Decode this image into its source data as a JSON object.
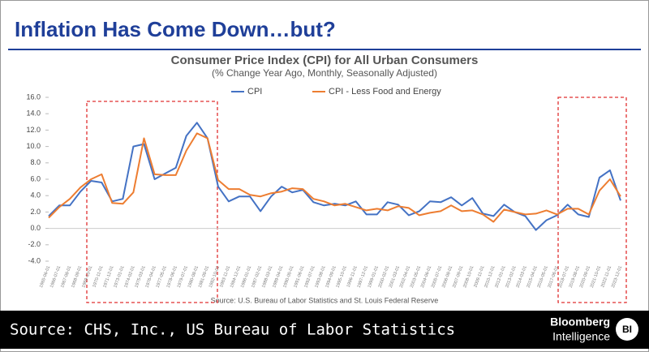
{
  "header": {
    "title": "Inflation Has Come Down…but?"
  },
  "chart_data": {
    "type": "line",
    "title": "Consumer Price Index (CPI) for All Urban Consumers",
    "subtitle": "(% Change Year Ago, Monthly, Seasonally Adjusted)",
    "note": "Source: U.S. Bureau of Labor Statistics and St. Louis Federal Reserve",
    "x": [
      "1965-06-01",
      "1966-07-01",
      "1967-08-01",
      "1968-09-01",
      "1969-10-01",
      "1970-11-01",
      "1971-12-01",
      "1973-01-01",
      "1974-02-01",
      "1975-03-01",
      "1976-04-01",
      "1977-05-01",
      "1978-06-01",
      "1979-07-01",
      "1980-08-01",
      "1981-09-01",
      "1982-10-01",
      "1983-11-01",
      "1984-12-01",
      "1986-01-01",
      "1987-02-01",
      "1988-03-01",
      "1989-04-01",
      "1990-05-01",
      "1991-06-01",
      "1992-07-01",
      "1993-08-01",
      "1994-09-01",
      "1995-10-01",
      "1996-11-01",
      "1997-12-01",
      "1999-01-01",
      "2000-02-01",
      "2001-03-01",
      "2002-04-01",
      "2003-05-01",
      "2004-06-01",
      "2005-07-01",
      "2006-08-01",
      "2007-09-01",
      "2008-10-01",
      "2009-11-01",
      "2010-12-01",
      "2012-01-01",
      "2013-02-01",
      "2014-03-01",
      "2015-04-01",
      "2016-05-01",
      "2017-06-01",
      "2018-07-01",
      "2019-08-01",
      "2020-09-01",
      "2021-10-01",
      "2022-11-01",
      "2023-12-01"
    ],
    "series": [
      {
        "name": "CPI",
        "color": "#4472c4",
        "values": [
          1.5,
          2.8,
          2.8,
          4.5,
          5.8,
          5.6,
          3.3,
          3.6,
          10.0,
          10.3,
          6.0,
          6.7,
          7.4,
          11.3,
          12.9,
          11.0,
          5.1,
          3.3,
          3.9,
          3.9,
          2.1,
          3.9,
          5.1,
          4.4,
          4.7,
          3.2,
          2.8,
          3.0,
          2.8,
          3.3,
          1.7,
          1.7,
          3.2,
          2.9,
          1.6,
          2.1,
          3.3,
          3.2,
          3.8,
          2.8,
          3.7,
          1.8,
          1.5,
          2.9,
          2.0,
          1.5,
          -0.2,
          1.0,
          1.6,
          2.9,
          1.7,
          1.4,
          6.2,
          7.1,
          3.4
        ]
      },
      {
        "name": "CPI - Less Food and Energy",
        "color": "#ed7d31",
        "values": [
          1.3,
          2.6,
          3.6,
          5.0,
          6.0,
          6.6,
          3.1,
          3.0,
          4.4,
          11.0,
          6.6,
          6.5,
          6.5,
          9.5,
          11.6,
          11.0,
          5.9,
          4.8,
          4.8,
          4.1,
          3.9,
          4.3,
          4.5,
          4.9,
          4.8,
          3.6,
          3.3,
          2.8,
          3.0,
          2.6,
          2.2,
          2.4,
          2.2,
          2.7,
          2.5,
          1.6,
          1.9,
          2.1,
          2.8,
          2.1,
          2.2,
          1.7,
          0.8,
          2.3,
          2.0,
          1.7,
          1.8,
          2.2,
          1.7,
          2.4,
          2.4,
          1.7,
          4.6,
          6.0,
          3.9
        ]
      }
    ],
    "ylim": [
      -4,
      16
    ],
    "yticks": [
      {
        "value": -4,
        "label": "-4.0"
      },
      {
        "value": -2,
        "label": "-2.0"
      },
      {
        "value": 0,
        "label": "0.0"
      },
      {
        "value": 2,
        "label": "2.0"
      },
      {
        "value": 4,
        "label": "4.0"
      },
      {
        "value": 6,
        "label": "6.0"
      },
      {
        "value": 8,
        "label": "8.0"
      },
      {
        "value": 10,
        "label": "10.0"
      },
      {
        "value": 12,
        "label": "12.0"
      },
      {
        "value": 14,
        "label": "14.0"
      },
      {
        "value": 16,
        "label": "16.0"
      }
    ],
    "grid": false
  },
  "footer": {
    "source": "Source: CHS, Inc., US Bureau of Labor Statistics",
    "brand": [
      "Bloomberg",
      "Intelligence"
    ],
    "logo": "BI"
  }
}
